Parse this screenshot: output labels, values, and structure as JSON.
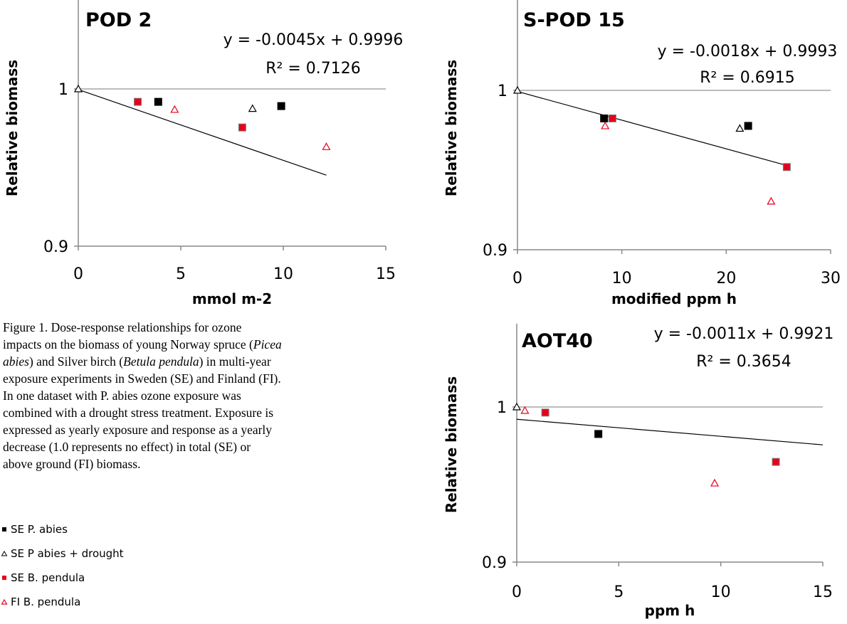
{
  "markers": {
    "se_abies": {
      "shape": "square",
      "fill": "#000000",
      "stroke": "#000000"
    },
    "se_abies_drought": {
      "shape": "triangle",
      "fill": "#ffffff",
      "stroke": "#000000"
    },
    "se_pendula": {
      "shape": "square",
      "fill": "#e8001c",
      "stroke": "#7f7f7f"
    },
    "fi_pendula": {
      "shape": "triangle",
      "fill": "#ffffff",
      "stroke": "#e8001c"
    }
  },
  "chart_data": [
    {
      "id": "pod2",
      "type": "scatter",
      "title": "POD 2",
      "xlabel": "mmol m-2",
      "ylabel": "Relative biomass",
      "xlim": [
        0,
        15
      ],
      "ylim": [
        0.9,
        1.0
      ],
      "x_ticks": [
        "0",
        "5",
        "10",
        "15"
      ],
      "y_ticks": [
        "0.9",
        "1"
      ],
      "grid": "horizontal",
      "equation": "y = -0.0045x + 0.9996",
      "r2": "R² = 0.7126",
      "trendline": {
        "slope": -0.0045,
        "intercept": 0.9996,
        "x_range": [
          0,
          12.1
        ]
      },
      "series": [
        {
          "name": "SE P. abies",
          "marker": "se_abies",
          "points": [
            [
              3.9,
              0.9918
            ],
            [
              9.9,
              0.9891
            ]
          ]
        },
        {
          "name": "SE P abies + drought",
          "marker": "se_abies_drought",
          "points": [
            [
              0,
              1.0
            ],
            [
              8.5,
              0.9875
            ]
          ]
        },
        {
          "name": "SE B. pendula",
          "marker": "se_pendula",
          "points": [
            [
              2.9,
              0.9918
            ],
            [
              8.0,
              0.9755
            ]
          ]
        },
        {
          "name": "FI B. pendula",
          "marker": "fi_pendula",
          "points": [
            [
              4.7,
              0.9869
            ],
            [
              12.1,
              0.9632
            ]
          ]
        }
      ]
    },
    {
      "id": "spod15",
      "type": "scatter",
      "title": "S-POD 15",
      "xlabel": "modified ppm h",
      "ylabel": "Relative biomass",
      "xlim": [
        0,
        30
      ],
      "ylim": [
        0.9,
        1.0
      ],
      "x_ticks": [
        "0",
        "10",
        "20",
        "30"
      ],
      "y_ticks": [
        "0.9",
        "1"
      ],
      "grid": "horizontal",
      "equation": "y = -0.0018x + 0.9993",
      "r2": "R² = 0.6915",
      "trendline": {
        "slope": -0.0018,
        "intercept": 0.9993,
        "x_range": [
          0,
          25.8
        ]
      },
      "series": [
        {
          "name": "SE P. abies",
          "marker": "se_abies",
          "points": [
            [
              8.3,
              0.9824
            ],
            [
              22.1,
              0.9777
            ]
          ]
        },
        {
          "name": "SE P abies + drought",
          "marker": "se_abies_drought",
          "points": [
            [
              0,
              1.0
            ],
            [
              21.3,
              0.9761
            ]
          ]
        },
        {
          "name": "SE B. pendula",
          "marker": "se_pendula",
          "points": [
            [
              9.1,
              0.9824
            ],
            [
              25.8,
              0.9519
            ]
          ]
        },
        {
          "name": "FI B. pendula",
          "marker": "fi_pendula",
          "points": [
            [
              8.4,
              0.9777
            ],
            [
              24.3,
              0.9304
            ]
          ]
        }
      ]
    },
    {
      "id": "aot40",
      "type": "scatter",
      "title": "AOT40",
      "xlabel": "ppm h",
      "ylabel": "Relative biomass",
      "xlim": [
        0,
        15
      ],
      "ylim": [
        0.9,
        1.0
      ],
      "x_ticks": [
        "0",
        "5",
        "10",
        "15"
      ],
      "y_ticks": [
        "0.9",
        "1"
      ],
      "grid": "horizontal",
      "equation": "y = -0.0011x + 0.9921",
      "r2": "R² = 0.3654",
      "trendline": {
        "slope": -0.0011,
        "intercept": 0.9921,
        "x_range": [
          0,
          15
        ]
      },
      "series": [
        {
          "name": "SE P. abies",
          "marker": "se_abies",
          "points": [
            [
              4.0,
              0.9826
            ]
          ]
        },
        {
          "name": "SE P abies + drought",
          "marker": "se_abies_drought",
          "points": [
            [
              0,
              1.0
            ]
          ]
        },
        {
          "name": "SE B. pendula",
          "marker": "se_pendula",
          "points": [
            [
              1.4,
              0.9964
            ],
            [
              12.7,
              0.9646
            ]
          ]
        },
        {
          "name": "FI B. pendula",
          "marker": "fi_pendula",
          "points": [
            [
              0.4,
              0.9977
            ],
            [
              9.7,
              0.9509
            ]
          ]
        }
      ]
    }
  ],
  "caption": {
    "p1": "Figure 1. Dose-response relationships for ozone impacts on the biomass of young Norway spruce (",
    "species1": "Picea abies",
    "p2": ") and Silver birch (",
    "species2": "Betula pendula",
    "p3": ") in multi-year exposure experiments in Sweden (SE) and Finland (FI). In one dataset with P. abies ozone exposure was combined with a drought stress treatment. Exposure is expressed as yearly exposure and response as a yearly decrease (1.0 represents no effect) in total (SE) or above ground (FI) biomass."
  },
  "legend": [
    {
      "label": "SE P. abies",
      "marker": "se_abies"
    },
    {
      "label": "SE P abies + drought",
      "marker": "se_abies_drought"
    },
    {
      "label": "SE B. pendula",
      "marker": "se_pendula"
    },
    {
      "label": "FI B. pendula",
      "marker": "fi_pendula"
    }
  ]
}
